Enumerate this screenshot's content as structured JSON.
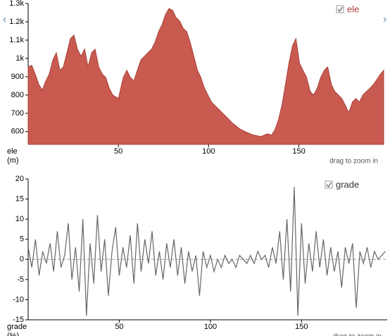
{
  "chart_data": [
    {
      "type": "area",
      "legend": "ele",
      "ylabel": [
        "ele",
        "(m)"
      ],
      "note": "drag to zoom in",
      "color": "#c95a50",
      "line_color": "#a8423a",
      "x": [
        0,
        2,
        3.9,
        5.9,
        7.8,
        9.8,
        11.7,
        13.7,
        15.6,
        17.6,
        19.5,
        21.5,
        23.4,
        25.4,
        27.3,
        29.3,
        31.3,
        33.2,
        35.2,
        37.1,
        39.1,
        41,
        43,
        44.9,
        46.9,
        50,
        52.7,
        54.7,
        56.6,
        58.6,
        60.5,
        62.5,
        64.5,
        66.4,
        68.4,
        70.3,
        72.3,
        74.2,
        76.2,
        78.1,
        80.1,
        82,
        84,
        85.9,
        87.9,
        89.8,
        91.8,
        93.8,
        95.7,
        97.7,
        99.6,
        101.6,
        105.5,
        109.4,
        113.3,
        117.2,
        121.1,
        125,
        128.9,
        132.8,
        134.8,
        136.7,
        138.7,
        140.6,
        142.6,
        144.5,
        146.5,
        148.4,
        150.4,
        152.3,
        154.3,
        156.3,
        158.2,
        160.2,
        162.1,
        164.1,
        166,
        168,
        169.9,
        171.9,
        173.8,
        175.8,
        177.7,
        179.7,
        181.6,
        183.6,
        185.5,
        187.5,
        189.5,
        191.4,
        195.3,
        197
      ],
      "values": [
        954,
        962,
        915,
        858,
        827,
        877,
        915,
        992,
        1031,
        935,
        954,
        1031,
        1108,
        1127,
        1050,
        1012,
        1050,
        954,
        1031,
        1050,
        954,
        915,
        896,
        838,
        800,
        781,
        896,
        935,
        896,
        877,
        935,
        992,
        1012,
        1031,
        1050,
        1088,
        1146,
        1185,
        1242,
        1273,
        1262,
        1223,
        1204,
        1165,
        1146,
        1088,
        1012,
        935,
        896,
        838,
        800,
        762,
        723,
        685,
        646,
        615,
        596,
        581,
        573,
        588,
        581,
        608,
        665,
        742,
        858,
        973,
        1069,
        1108,
        973,
        935,
        896,
        819,
        800,
        838,
        896,
        935,
        954,
        858,
        819,
        800,
        781,
        742,
        704,
        762,
        781,
        762,
        800,
        819,
        838,
        858,
        915,
        935
      ],
      "xlim": [
        0,
        197
      ],
      "xticks": [
        50,
        100,
        150
      ],
      "ylim": [
        530,
        1300
      ],
      "yticks": [
        600,
        700,
        800,
        900,
        {
          "value": 1000,
          "label": "1k"
        },
        {
          "value": 1100,
          "label": "1.1k"
        },
        {
          "value": 1200,
          "label": "1.2k"
        },
        {
          "value": 1300,
          "label": "1.3k"
        }
      ]
    },
    {
      "type": "line",
      "legend": "grade",
      "ylabel": [
        "grade",
        "(%)"
      ],
      "note": "drag to zoom in",
      "color": "#666666",
      "x": [
        0,
        2,
        4,
        6,
        8,
        10,
        12,
        14,
        16,
        18,
        20,
        22,
        24,
        26,
        28,
        30,
        32,
        34,
        36,
        38,
        40,
        42,
        44,
        46,
        48,
        50,
        52,
        54,
        56,
        58,
        60,
        62,
        64,
        66,
        68,
        70,
        72,
        74,
        76,
        78,
        80,
        82,
        84,
        86,
        88,
        90,
        92,
        94,
        96,
        98,
        100,
        102,
        104,
        106,
        108,
        110,
        112,
        114,
        116,
        118,
        120,
        122,
        124,
        126,
        128,
        130,
        132,
        134,
        136,
        138,
        140,
        142,
        144,
        146,
        148,
        150,
        152,
        154,
        156,
        158,
        160,
        162,
        164,
        166,
        168,
        170,
        172,
        174,
        176,
        178,
        180,
        182,
        184,
        186,
        188,
        190,
        192,
        194,
        196
      ],
      "values": [
        3,
        -2,
        5,
        -4,
        2,
        -1,
        4,
        -3,
        7,
        -2,
        1,
        9,
        -5,
        3,
        -8,
        10,
        -14,
        4,
        -6,
        11,
        -3,
        5,
        -9,
        2,
        8,
        -4,
        3,
        -2,
        6,
        -6,
        9,
        -3,
        5,
        -1,
        7,
        -4,
        2,
        -5,
        4,
        -2,
        5,
        -4,
        3,
        -6,
        2,
        -3,
        1,
        -9,
        2,
        -2,
        1,
        -3,
        0,
        -2,
        1,
        -1,
        0,
        -2,
        1,
        0,
        -1,
        1,
        -1,
        2,
        0,
        1,
        -2,
        3,
        -1,
        7,
        -5,
        10,
        -8,
        18,
        -14,
        9,
        -6,
        4,
        -3,
        7,
        -2,
        5,
        -4,
        3,
        -3,
        2,
        -7,
        3,
        -1,
        4,
        -12,
        2,
        -1,
        3,
        -2,
        2,
        0,
        1,
        2
      ],
      "xlim": [
        0,
        197
      ],
      "xticks": [
        50,
        100,
        150
      ],
      "ylim": [
        -15,
        20
      ],
      "yticks": [
        -15,
        -10,
        -5,
        0,
        5,
        10,
        15,
        20
      ]
    }
  ]
}
